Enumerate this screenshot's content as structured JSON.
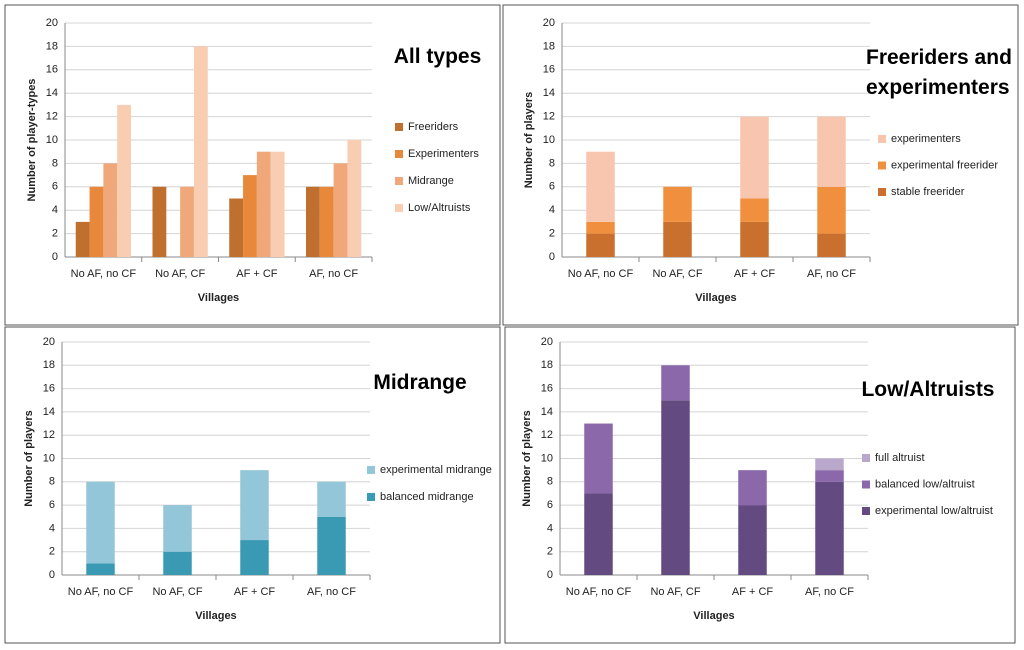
{
  "chart_data": [
    {
      "type": "bar",
      "title": "All types",
      "x_label": "Villages",
      "y_label": "Number of player-types",
      "categories": [
        "No AF, no CF",
        "No AF, CF",
        "AF + CF",
        "AF, no CF"
      ],
      "ylim": [
        0,
        20
      ],
      "yticks": [
        0,
        2,
        4,
        6,
        8,
        10,
        12,
        14,
        16,
        18,
        20
      ],
      "grid": true,
      "stacked": false,
      "series": [
        {
          "name": "Freeriders",
          "color": "#c0702e",
          "values": [
            3,
            6,
            5,
            6
          ]
        },
        {
          "name": "Experimenters",
          "color": "#e8883a",
          "values": [
            6,
            0,
            7,
            6
          ]
        },
        {
          "name": "Midrange",
          "color": "#f0a87a",
          "values": [
            8,
            6,
            9,
            8
          ]
        },
        {
          "name": "Low/Altruists",
          "color": "#f8cdb2",
          "values": [
            13,
            18,
            9,
            10
          ]
        }
      ]
    },
    {
      "type": "bar",
      "title": "Freeriders and experimenters",
      "x_label": "Villages",
      "y_label": "Number of players",
      "categories": [
        "No AF, no CF",
        "No AF, CF",
        "AF + CF",
        "AF, no CF"
      ],
      "ylim": [
        0,
        20
      ],
      "yticks": [
        0,
        2,
        4,
        6,
        8,
        10,
        12,
        14,
        16,
        18,
        20
      ],
      "grid": true,
      "stacked": true,
      "series": [
        {
          "name": "stable freerider",
          "color": "#c9702e",
          "values": [
            2,
            3,
            3,
            2
          ]
        },
        {
          "name": "experimental freerider",
          "color": "#f0903e",
          "values": [
            1,
            3,
            2,
            4
          ]
        },
        {
          "name": "experimenters",
          "color": "#f8c6ae",
          "values": [
            6,
            0,
            7,
            6
          ]
        }
      ]
    },
    {
      "type": "bar",
      "title": "Midrange",
      "x_label": "Villages",
      "y_label": "Number of players",
      "categories": [
        "No AF, no CF",
        "No AF, CF",
        "AF + CF",
        "AF, no CF"
      ],
      "ylim": [
        0,
        20
      ],
      "yticks": [
        0,
        2,
        4,
        6,
        8,
        10,
        12,
        14,
        16,
        18,
        20
      ],
      "grid": true,
      "stacked": true,
      "series": [
        {
          "name": "balanced midrange",
          "color": "#3a9ab4",
          "values": [
            1,
            2,
            3,
            5
          ]
        },
        {
          "name": "experimental midrange",
          "color": "#93c6d8",
          "values": [
            7,
            4,
            6,
            3
          ]
        }
      ]
    },
    {
      "type": "bar",
      "title": "Low/Altruists",
      "x_label": "Villages",
      "y_label": "Number of players",
      "categories": [
        "No AF, no CF",
        "No AF, CF",
        "AF + CF",
        "AF, no CF"
      ],
      "ylim": [
        0,
        20
      ],
      "yticks": [
        0,
        2,
        4,
        6,
        8,
        10,
        12,
        14,
        16,
        18,
        20
      ],
      "grid": true,
      "stacked": true,
      "series": [
        {
          "name": "experimental low/altruist",
          "color": "#634a80",
          "values": [
            7,
            15,
            6,
            8
          ]
        },
        {
          "name": "balanced low/altruist",
          "color": "#8a68aa",
          "values": [
            6,
            3,
            3,
            1
          ]
        },
        {
          "name": "full altruist",
          "color": "#b9a8cc",
          "values": [
            0,
            0,
            0,
            1
          ]
        }
      ]
    }
  ]
}
